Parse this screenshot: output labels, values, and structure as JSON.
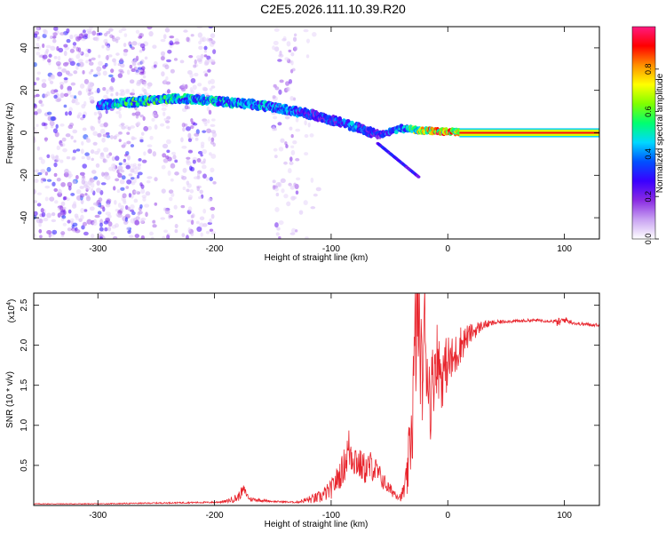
{
  "title": "C2E5.2026.111.10.39.R20",
  "chart_data": [
    {
      "type": "heatmap",
      "xlabel": "Height of straight line (km)",
      "ylabel": "Frequency (Hz)",
      "xlim": [
        -355,
        130
      ],
      "ylim": [
        -50,
        50
      ],
      "x_ticks": [
        -300,
        -200,
        -100,
        0,
        100
      ],
      "y_ticks": [
        -40,
        -20,
        0,
        20,
        40
      ],
      "colorbar": {
        "label": "Normalized spectral amplitude",
        "range": [
          0,
          1
        ],
        "ticks": [
          "0.0",
          "0.2",
          "0.4",
          "0.6",
          "0.8"
        ],
        "colors": [
          "#ffffff",
          "#c9a3f2",
          "#8a2be2",
          "#3a00ff",
          "#0050ff",
          "#00d8ff",
          "#00ff70",
          "#80ff00",
          "#ffff00",
          "#ff9000",
          "#ff0000",
          "#ff1a80"
        ]
      },
      "ridge": {
        "x": [
          -300,
          -280,
          -260,
          -240,
          -220,
          -200,
          -180,
          -160,
          -140,
          -120,
          -100,
          -80,
          -60,
          -40,
          -20,
          0,
          20,
          60,
          100,
          130
        ],
        "frequency": [
          13,
          14,
          15,
          16,
          16,
          15,
          14,
          13,
          11,
          9,
          6,
          3,
          -1,
          2,
          1,
          0.5,
          0,
          0,
          0,
          0
        ],
        "amplitude": [
          0.35,
          0.5,
          0.55,
          0.55,
          0.5,
          0.5,
          0.45,
          0.45,
          0.4,
          0.35,
          0.35,
          0.4,
          0.3,
          0.45,
          0.8,
          0.85,
          0.9,
          0.9,
          0.9,
          0.9
        ]
      },
      "grid": false
    },
    {
      "type": "line",
      "xlabel": "Height of straight line (km)",
      "ylabel": "SNR (10 * v/v)",
      "y_multiplier_label": "(x10",
      "y_multiplier_exp": "4",
      "xlim": [
        -355,
        130
      ],
      "ylim": [
        0,
        2.65
      ],
      "x_ticks": [
        -300,
        -200,
        -100,
        0,
        100
      ],
      "y_ticks": [
        "0.5",
        "1.0",
        "1.5",
        "2.0",
        "2.5"
      ],
      "color": "#e8242c",
      "series": [
        {
          "x": [
            -355,
            -300,
            -250,
            -200,
            -190,
            -180,
            -175,
            -170,
            -150,
            -130,
            -110,
            -100,
            -90,
            -85,
            -80,
            -75,
            -70,
            -65,
            -60,
            -50,
            -40,
            -35,
            -30,
            -28,
            -25,
            -22,
            -20,
            -15,
            -10,
            -5,
            0,
            5,
            10,
            20,
            30,
            40,
            50,
            60,
            70,
            80,
            90,
            95,
            100,
            110,
            120,
            130
          ],
          "y": [
            0.02,
            0.02,
            0.03,
            0.04,
            0.05,
            0.1,
            0.2,
            0.08,
            0.05,
            0.04,
            0.1,
            0.2,
            0.45,
            0.7,
            0.6,
            0.5,
            0.45,
            0.5,
            0.4,
            0.2,
            0.1,
            0.3,
            1.2,
            2.0,
            2.4,
            1.5,
            2.2,
            1.3,
            1.9,
            1.6,
            1.8,
            1.8,
            2.0,
            2.15,
            2.25,
            2.28,
            2.3,
            2.3,
            2.31,
            2.31,
            2.3,
            2.28,
            2.32,
            2.27,
            2.26,
            2.25
          ],
          "noise": [
            0.005,
            0.005,
            0.008,
            0.01,
            0.02,
            0.06,
            0.06,
            0.03,
            0.01,
            0.01,
            0.08,
            0.12,
            0.2,
            0.3,
            0.25,
            0.2,
            0.2,
            0.2,
            0.15,
            0.08,
            0.05,
            0.25,
            0.7,
            0.8,
            0.8,
            0.6,
            0.7,
            0.5,
            0.5,
            0.4,
            0.35,
            0.3,
            0.25,
            0.12,
            0.06,
            0.03,
            0.02,
            0.02,
            0.02,
            0.02,
            0.02,
            0.06,
            0.04,
            0.02,
            0.02,
            0.02
          ]
        }
      ],
      "grid": false
    }
  ]
}
